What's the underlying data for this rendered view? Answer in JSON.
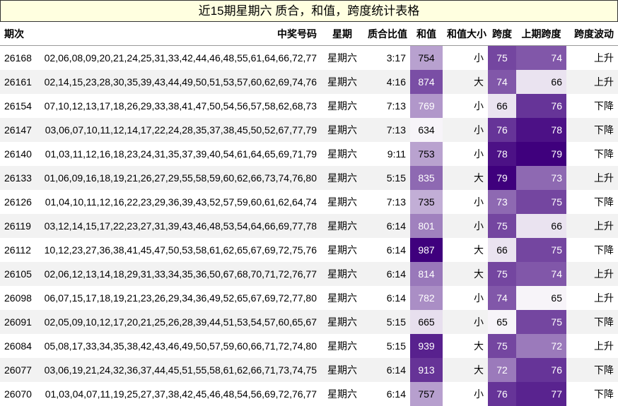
{
  "title": "近15期星期六 质合，和值，跨度统计表格",
  "columns": [
    "期次",
    "中奖号码",
    "星期",
    "质合比值",
    "和值",
    "和值大小",
    "跨度",
    "上期跨度",
    "跨度波动"
  ],
  "rows": [
    {
      "issue": "26168",
      "numbers": "02,06,08,09,20,21,24,25,31,33,42,44,46,48,55,61,64,66,72,77",
      "weekday": "星期六",
      "ratio": "3:17",
      "sum": "754",
      "size": "小",
      "span": "75",
      "prev_span": "74",
      "trend": "上升"
    },
    {
      "issue": "26161",
      "numbers": "02,14,15,23,28,30,35,39,43,44,49,50,51,53,57,60,62,69,74,76",
      "weekday": "星期六",
      "ratio": "4:16",
      "sum": "874",
      "size": "大",
      "span": "74",
      "prev_span": "66",
      "trend": "上升"
    },
    {
      "issue": "26154",
      "numbers": "07,10,12,13,17,18,26,29,33,38,41,47,50,54,56,57,58,62,68,73",
      "weekday": "星期六",
      "ratio": "7:13",
      "sum": "769",
      "size": "小",
      "span": "66",
      "prev_span": "76",
      "trend": "下降"
    },
    {
      "issue": "26147",
      "numbers": "03,06,07,10,11,12,14,17,22,24,28,35,37,38,45,50,52,67,77,79",
      "weekday": "星期六",
      "ratio": "7:13",
      "sum": "634",
      "size": "小",
      "span": "76",
      "prev_span": "78",
      "trend": "下降"
    },
    {
      "issue": "26140",
      "numbers": "01,03,11,12,16,18,23,24,31,35,37,39,40,54,61,64,65,69,71,79",
      "weekday": "星期六",
      "ratio": "9:11",
      "sum": "753",
      "size": "小",
      "span": "78",
      "prev_span": "79",
      "trend": "下降"
    },
    {
      "issue": "26133",
      "numbers": "01,06,09,16,18,19,21,26,27,29,55,58,59,60,62,66,73,74,76,80",
      "weekday": "星期六",
      "ratio": "5:15",
      "sum": "835",
      "size": "大",
      "span": "79",
      "prev_span": "73",
      "trend": "上升"
    },
    {
      "issue": "26126",
      "numbers": "01,04,10,11,12,16,22,23,29,36,39,43,52,57,59,60,61,62,64,74",
      "weekday": "星期六",
      "ratio": "7:13",
      "sum": "735",
      "size": "小",
      "span": "73",
      "prev_span": "75",
      "trend": "下降"
    },
    {
      "issue": "26119",
      "numbers": "03,12,14,15,17,22,23,27,31,39,43,46,48,53,54,64,66,69,77,78",
      "weekday": "星期六",
      "ratio": "6:14",
      "sum": "801",
      "size": "小",
      "span": "75",
      "prev_span": "66",
      "trend": "上升"
    },
    {
      "issue": "26112",
      "numbers": "10,12,23,27,36,38,41,45,47,50,53,58,61,62,65,67,69,72,75,76",
      "weekday": "星期六",
      "ratio": "6:14",
      "sum": "987",
      "size": "大",
      "span": "66",
      "prev_span": "75",
      "trend": "下降"
    },
    {
      "issue": "26105",
      "numbers": "02,06,12,13,14,18,29,31,33,34,35,36,50,67,68,70,71,72,76,77",
      "weekday": "星期六",
      "ratio": "6:14",
      "sum": "814",
      "size": "大",
      "span": "75",
      "prev_span": "74",
      "trend": "上升"
    },
    {
      "issue": "26098",
      "numbers": "06,07,15,17,18,19,21,23,26,29,34,36,49,52,65,67,69,72,77,80",
      "weekday": "星期六",
      "ratio": "6:14",
      "sum": "782",
      "size": "小",
      "span": "74",
      "prev_span": "65",
      "trend": "上升"
    },
    {
      "issue": "26091",
      "numbers": "02,05,09,10,12,17,20,21,25,26,28,39,44,51,53,54,57,60,65,67",
      "weekday": "星期六",
      "ratio": "5:15",
      "sum": "665",
      "size": "小",
      "span": "65",
      "prev_span": "75",
      "trend": "下降"
    },
    {
      "issue": "26084",
      "numbers": "05,08,17,33,34,35,38,42,43,46,49,50,57,59,60,66,71,72,74,80",
      "weekday": "星期六",
      "ratio": "5:15",
      "sum": "939",
      "size": "大",
      "span": "75",
      "prev_span": "72",
      "trend": "上升"
    },
    {
      "issue": "26077",
      "numbers": "03,06,19,21,24,32,36,37,44,45,51,55,58,61,62,66,71,73,74,75",
      "weekday": "星期六",
      "ratio": "6:14",
      "sum": "913",
      "size": "大",
      "span": "72",
      "prev_span": "76",
      "trend": "下降"
    },
    {
      "issue": "26070",
      "numbers": "01,03,04,07,11,19,25,27,37,38,42,45,46,48,54,56,69,72,76,77",
      "weekday": "星期六",
      "ratio": "6:14",
      "sum": "757",
      "size": "小",
      "span": "76",
      "prev_span": "77",
      "trend": "下降"
    }
  ],
  "heat_colors": {
    "low": "#f7f4f9",
    "high": "#3f007d"
  }
}
